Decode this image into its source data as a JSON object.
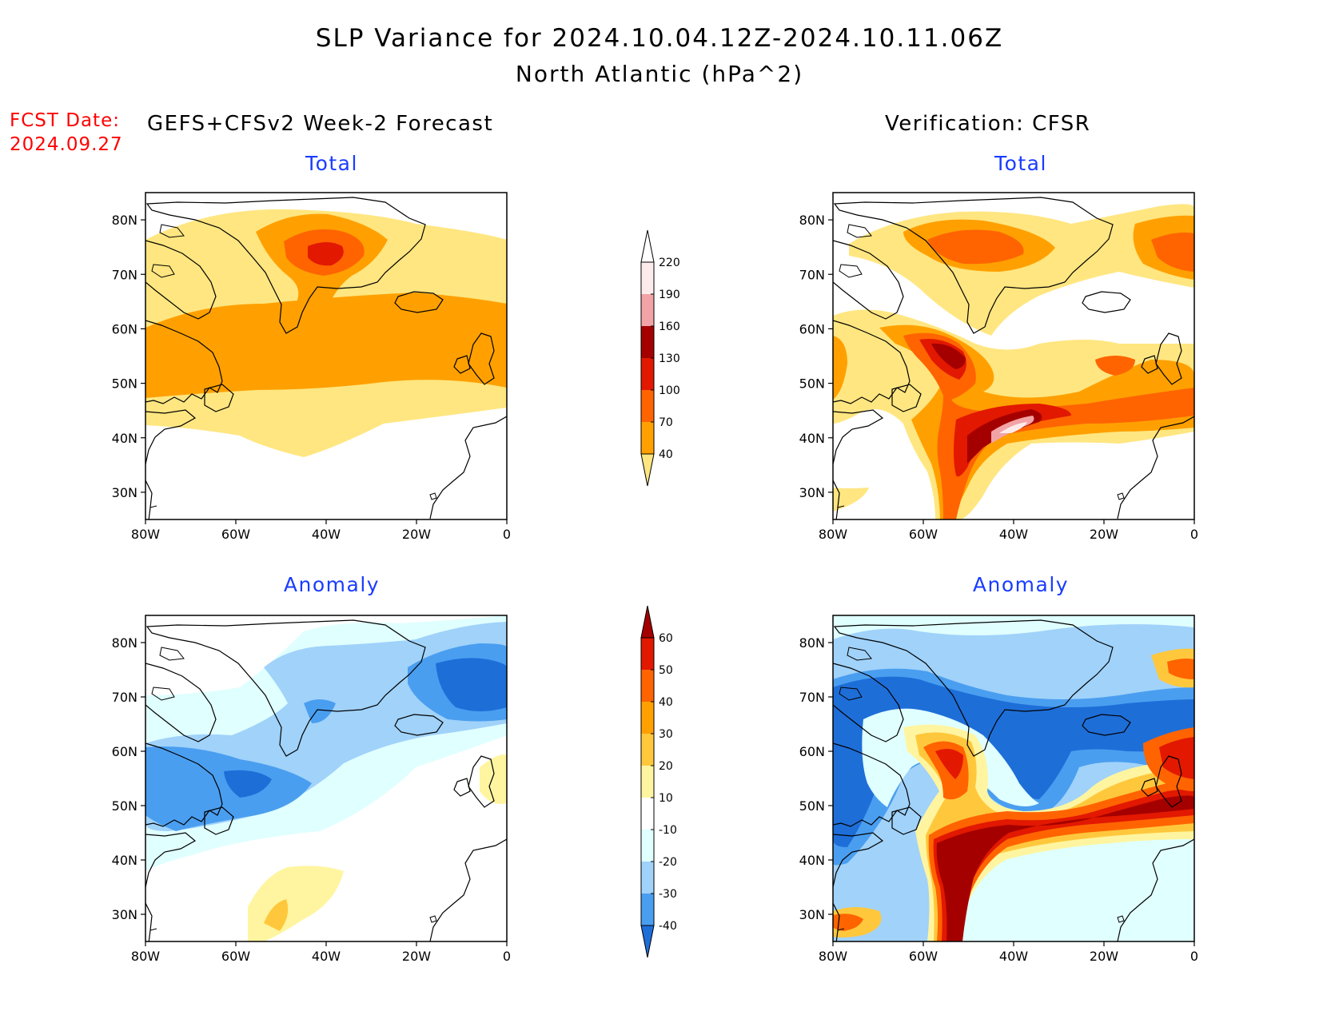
{
  "title": {
    "line1": "SLP Variance for 2024.10.04.12Z-2024.10.11.06Z",
    "line2": "North Atlantic (hPa^2)"
  },
  "forecast_date": {
    "label": "FCST Date:",
    "value": "2024.09.27"
  },
  "columns": {
    "left": "GEFS+CFSv2 Week-2 Forecast",
    "right": "Verification: CFSR"
  },
  "panel_titles": {
    "total": "Total",
    "anomaly": "Anomaly"
  },
  "axes": {
    "lat_labels": [
      "80N",
      "70N",
      "60N",
      "50N",
      "40N",
      "30N"
    ],
    "lon_labels": [
      "80W",
      "60W",
      "40W",
      "20W",
      "0"
    ]
  },
  "colorbar_total": {
    "levels": [
      "220",
      "190",
      "160",
      "130",
      "100",
      "70",
      "40"
    ],
    "colors": [
      "#ffffff",
      "#fdebeb",
      "#f2a3a6",
      "#a50000",
      "#e21800",
      "#ff6400",
      "#ffa000",
      "#ffe680"
    ]
  },
  "colorbar_anomaly": {
    "levels": [
      "60",
      "50",
      "40",
      "30",
      "20",
      "10",
      "-10",
      "-20",
      "-30",
      "-40"
    ],
    "colors": [
      "#a50000",
      "#e21800",
      "#ff6400",
      "#ffa000",
      "#ffc83c",
      "#fff5a0",
      "#ffffff",
      "#e0ffff",
      "#a0d2fa",
      "#4a9ef0",
      "#1e6ed8"
    ]
  },
  "chart_data": [
    {
      "type": "heatmap",
      "title": "Total",
      "subtitle": "GEFS+CFSv2 Week-2 Forecast",
      "region": {
        "lon": [
          -80,
          0
        ],
        "lat": [
          25,
          85
        ]
      },
      "features": [
        {
          "name": "max",
          "lon": -40,
          "lat": 74,
          "value": 130
        },
        {
          "name": "band",
          "lat_range": [
            48,
            63
          ],
          "value": 70
        }
      ]
    },
    {
      "type": "heatmap",
      "title": "Total",
      "subtitle": "Verification: CFSR",
      "region": {
        "lon": [
          -80,
          0
        ],
        "lat": [
          25,
          85
        ]
      },
      "features": [
        {
          "name": "max",
          "lon": -38,
          "lat": 42,
          "value": 190
        },
        {
          "name": "max",
          "lon": -52,
          "lat": 55,
          "value": 160
        },
        {
          "name": "max",
          "lon": -40,
          "lat": 75,
          "value": 100
        }
      ]
    },
    {
      "type": "heatmap",
      "title": "Anomaly",
      "subtitle": "GEFS+CFSv2 Week-2 Forecast",
      "region": {
        "lon": [
          -80,
          0
        ],
        "lat": [
          25,
          85
        ]
      },
      "features": [
        {
          "name": "min",
          "lon": -55,
          "lat": 52,
          "value": -40
        },
        {
          "name": "min",
          "lon": -8,
          "lat": 72,
          "value": -40
        },
        {
          "name": "max",
          "lon": -48,
          "lat": 30,
          "value": 20
        }
      ]
    },
    {
      "type": "heatmap",
      "title": "Anomaly",
      "subtitle": "Verification: CFSR",
      "region": {
        "lon": [
          -80,
          0
        ],
        "lat": [
          25,
          85
        ]
      },
      "features": [
        {
          "name": "max",
          "lon": -40,
          "lat": 42,
          "value": 60
        },
        {
          "name": "min",
          "lon": -60,
          "lat": 68,
          "value": -40
        },
        {
          "name": "max",
          "lon": -50,
          "lat": 55,
          "value": 50
        }
      ]
    }
  ]
}
